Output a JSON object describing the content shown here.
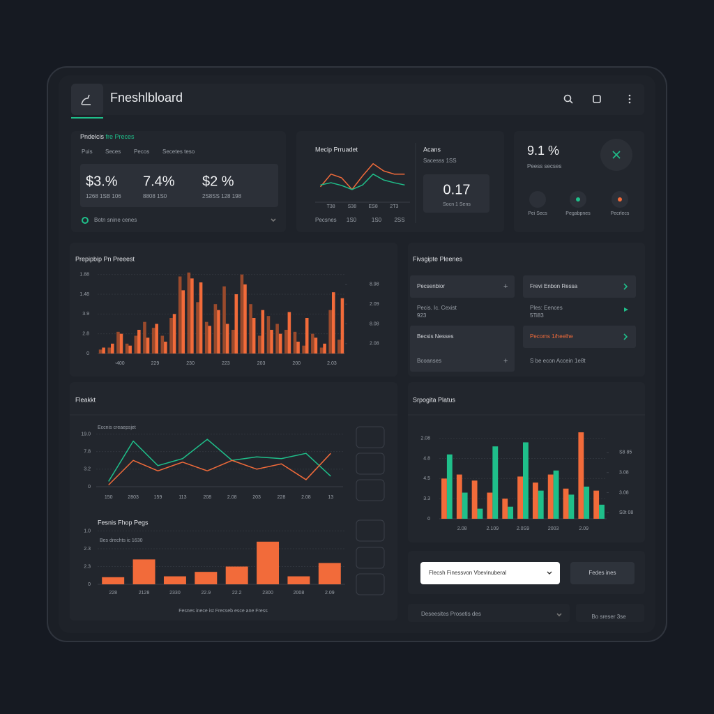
{
  "header": {
    "title": "Fneshlbloard"
  },
  "summary": {
    "title": "Pndelcis",
    "title_accent": "fre Preces",
    "tabs": [
      "Puis",
      "Seces",
      "Pecos",
      "Secetes teso"
    ],
    "kpis": [
      {
        "value": "$3.%",
        "note": "1268 1SB 106"
      },
      {
        "value": "7.4%",
        "note": "8808 1S0"
      },
      {
        "value": "$2 %",
        "note": "2S8SS 128 198"
      }
    ],
    "footer": "Botn snine cenes"
  },
  "market": {
    "side_title": "Acans",
    "side_note": "Sacesss 1SS",
    "metric": "0.17",
    "metric_note": "Socn 1 Sens",
    "foot": [
      "Pecsnes",
      "1S0",
      "1S0",
      "2SS"
    ]
  },
  "rate": {
    "value": "9.1 %",
    "note": "Peess secses",
    "actions": [
      "Pei Secs",
      "Pegabpnes",
      "Pecrlecs"
    ]
  },
  "list": {
    "title": "Fivsgipte Pleenes",
    "left": [
      "Pecsenbior",
      "Pecis. Ic. Cexist",
      "923",
      "Becsis Nesses",
      "Bcoanses"
    ],
    "right": [
      "Frevi Enbon Ressa",
      "Ples: Eences",
      "5Ti83",
      "Pecoms 1/heelhe",
      "S be econ Accein 1e8t"
    ]
  },
  "form": {
    "select": "Flecsh Finessvon Vbevinuberal",
    "button": "Fedes ines",
    "footer_select": "Deseesites Prosetis des",
    "footer_note": "Bo sreser 3se"
  },
  "chart_data": [
    {
      "type": "line",
      "title": "Mecip Prruadet",
      "categories": [
        null,
        "T38",
        null,
        "S38",
        null,
        "ES8",
        null,
        "2T3",
        null
      ],
      "ylim": [
        0,
        100
      ],
      "series": [
        {
          "color": "#f26b3a",
          "values": [
            34,
            62,
            54,
            28,
            58,
            85,
            69,
            62,
            62
          ]
        },
        {
          "color": "#1fbf8a",
          "values": [
            38,
            43,
            37,
            28,
            38,
            62,
            49,
            43,
            38
          ]
        }
      ]
    },
    {
      "type": "bar",
      "title": "Prepipbip Pn Preeest",
      "categories": [
        null,
        null,
        "-400",
        null,
        null,
        null,
        "229",
        null,
        null,
        null,
        "230",
        null,
        null,
        null,
        "223",
        null,
        null,
        null,
        "203",
        null,
        null,
        null,
        "200",
        null,
        null,
        null,
        "2.03",
        null
      ],
      "ylim": [
        0,
        4.2
      ],
      "yticks": [
        {
          "value": 0,
          "label": "0"
        },
        {
          "value": 1,
          "label": "2.8"
        },
        {
          "value": 2,
          "label": "3.9"
        },
        {
          "value": 3,
          "label": "1.48"
        },
        {
          "value": 4,
          "label": "1.88"
        }
      ],
      "y2lim": [
        0,
        4.2
      ],
      "y2ticks": [
        {
          "value": 0.5,
          "label": "2.08"
        },
        {
          "value": 1.5,
          "label": "8.08"
        },
        {
          "value": 2.5,
          "label": "2.09"
        },
        {
          "value": 3.5,
          "label": "8.98"
        }
      ],
      "grid": true,
      "series": [
        {
          "color": "#9a4a2c",
          "values": [
            0.2,
            0.3,
            1.1,
            0.5,
            0.9,
            1.6,
            1.3,
            0.9,
            1.8,
            3.9,
            4.1,
            2.6,
            1.6,
            2.5,
            3.4,
            1.2,
            4.0,
            2.5,
            0.9,
            1.9,
            1.5,
            1.2,
            1.1,
            0.4,
            1.0,
            0.3,
            2.2,
            0.7
          ]
        },
        {
          "color": "#f26b3a",
          "values": [
            0.3,
            0.5,
            1.0,
            0.4,
            1.2,
            0.8,
            1.5,
            0.6,
            2.0,
            3.2,
            3.8,
            3.6,
            1.4,
            2.2,
            1.5,
            3.0,
            3.5,
            1.8,
            2.2,
            1.2,
            1.0,
            2.1,
            0.6,
            1.8,
            0.8,
            0.5,
            3.1,
            2.8
          ]
        }
      ]
    },
    {
      "type": "line",
      "title": "Fleakkt",
      "subtitle": "Eccnis creaepsjet",
      "categories": [
        "150",
        "2803",
        "159",
        "113",
        "208",
        "2.08",
        "203",
        "228",
        "2.08",
        "13"
      ],
      "ylim": [
        0,
        3.1
      ],
      "yticks": [
        {
          "value": 0,
          "label": "0"
        },
        {
          "value": 1,
          "label": "3.2"
        },
        {
          "value": 2,
          "label": "7.8"
        },
        {
          "value": 3,
          "label": "19.0"
        }
      ],
      "grid": true,
      "series": [
        {
          "color": "#1fbf8a",
          "values": [
            0.3,
            2.6,
            1.2,
            1.6,
            2.7,
            1.5,
            1.7,
            1.6,
            1.9,
            0.6
          ]
        },
        {
          "color": "#f26b3a",
          "values": [
            0.1,
            1.5,
            0.9,
            1.4,
            0.9,
            1.5,
            1.0,
            1.3,
            0.4,
            1.9
          ]
        }
      ]
    },
    {
      "type": "bar",
      "title": "Fesnis Fhop Pegs",
      "subtitle": "Bes drechts ic 1630",
      "note": "Fesnes inece ist Frecseb esce ane Fress",
      "categories": [
        "228",
        "2128",
        "2330",
        "22.9",
        "22.2",
        "2300",
        "2008",
        "2.09"
      ],
      "ylim": [
        0,
        3.1
      ],
      "yticks": [
        {
          "value": 0,
          "label": "0"
        },
        {
          "value": 1,
          "label": "2.3"
        },
        {
          "value": 2,
          "label": "2.3"
        },
        {
          "value": 3,
          "label": "1.0"
        }
      ],
      "grid": true,
      "series": [
        {
          "color": "#f26b3a",
          "values": [
            0.4,
            1.4,
            0.45,
            0.7,
            1.0,
            2.4,
            0.45,
            1.2
          ]
        }
      ]
    },
    {
      "type": "bar",
      "title": "Srpogita Platus",
      "categories": [
        null,
        "2.08",
        null,
        "2.109",
        null,
        "2.0S9",
        null,
        "2003",
        null,
        "2.09",
        null
      ],
      "ylim": [
        0,
        4.3
      ],
      "yticks": [
        {
          "value": 0,
          "label": "0"
        },
        {
          "value": 1,
          "label": "3.3"
        },
        {
          "value": 2,
          "label": "4.5"
        },
        {
          "value": 3,
          "label": "4.8"
        },
        {
          "value": 4,
          "label": "2.08"
        }
      ],
      "y2lim": [
        0,
        4.3
      ],
      "y2ticks": [
        {
          "value": 0.3,
          "label": "S0t 08"
        },
        {
          "value": 1.3,
          "label": "3.08"
        },
        {
          "value": 2.3,
          "label": "3.08"
        },
        {
          "value": 3.3,
          "label": "S8 85"
        }
      ],
      "grid": true,
      "series": [
        {
          "color": "#f26b3a",
          "values": [
            2.0,
            2.2,
            1.9,
            1.3,
            1.0,
            2.1,
            1.8,
            2.2,
            1.5,
            4.3,
            1.4
          ]
        },
        {
          "color": "#1fbf8a",
          "values": [
            3.2,
            1.3,
            0.5,
            3.6,
            0.6,
            3.8,
            1.4,
            2.4,
            1.2,
            1.6,
            0.7
          ]
        }
      ]
    }
  ]
}
